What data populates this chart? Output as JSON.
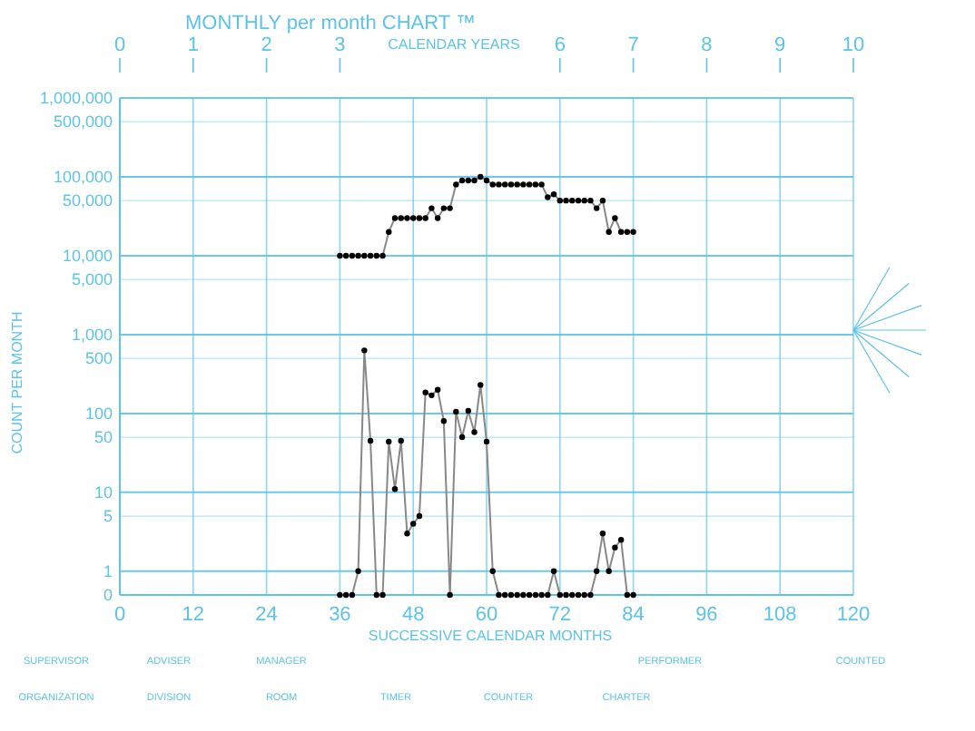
{
  "chart_data": {
    "type": "line",
    "title": "MONTHLY per month CHART ™",
    "xlabel": "SUCCESSIVE CALENDAR MONTHS",
    "ylabel": "COUNT PER MONTH",
    "x2label": "CALENDAR YEARS",
    "x": [
      36,
      37,
      38,
      39,
      40,
      41,
      42,
      43,
      44,
      45,
      46,
      47,
      48,
      49,
      50,
      51,
      52,
      53,
      54,
      55,
      56,
      57,
      58,
      59,
      60,
      61,
      62,
      63,
      64,
      65,
      66,
      67,
      68,
      69,
      70,
      71,
      72,
      73,
      74,
      75,
      76,
      77,
      78,
      79,
      80,
      81,
      82,
      83,
      84
    ],
    "series": [
      {
        "color": "#000000",
        "values": [
          10000,
          10000,
          10000,
          10000,
          10000,
          10000,
          10000,
          10000,
          20000,
          30000,
          30000,
          30000,
          30000,
          30000,
          30000,
          40000,
          30000,
          40000,
          40000,
          80000,
          90000,
          90000,
          90000,
          100000,
          90000,
          80000,
          80000,
          80000,
          80000,
          80000,
          80000,
          80000,
          80000,
          80000,
          55000,
          60000,
          50000,
          50000,
          50000,
          50000,
          50000,
          50000,
          40000,
          50000,
          20000,
          30000,
          20000,
          20000,
          20000
        ]
      },
      {
        "color": "#000000",
        "values": [
          0.5,
          0.5,
          0.5,
          1,
          630,
          45,
          0.5,
          0.5,
          44,
          11,
          45,
          3,
          4,
          5,
          185,
          170,
          200,
          80,
          0.5,
          105,
          50,
          108,
          58,
          230,
          44,
          1,
          0.5,
          0.5,
          0.5,
          0.5,
          0.5,
          0.5,
          0.5,
          0.5,
          0.5,
          1,
          0.5,
          0.5,
          0.5,
          0.5,
          0.5,
          0.5,
          1,
          3,
          1,
          2,
          2.5,
          0.5,
          0.5
        ]
      }
    ],
    "xlim": [
      0,
      120
    ],
    "xticks": [
      0,
      12,
      24,
      36,
      48,
      60,
      72,
      84,
      96,
      108,
      120
    ],
    "x2lim": [
      0,
      10
    ],
    "x2ticks": [
      0,
      1,
      2,
      3,
      6,
      7,
      8,
      9,
      10
    ],
    "ylim": [
      0.5,
      1000000
    ],
    "log": true,
    "yticks": [
      {
        "value": 0.5,
        "label": "0"
      },
      1,
      5,
      10,
      50,
      100,
      500,
      {
        "value": 1000,
        "label": "1,000"
      },
      {
        "value": 5000,
        "label": "5,000"
      },
      {
        "value": 10000,
        "label": "10,000"
      },
      {
        "value": 50000,
        "label": "50,000"
      },
      {
        "value": 100000,
        "label": "100,000"
      },
      {
        "value": 500000,
        "label": "500,000"
      },
      {
        "value": 1000000,
        "label": "1,000,000"
      }
    ],
    "grid": true,
    "marker": "circle",
    "line_style": "solid",
    "annotations": [
      "SUPERVISOR",
      "ADVISER",
      "MANAGER",
      "PERFORMER",
      "COUNTED",
      "ORGANIZATION",
      "DIVISION",
      "ROOM",
      "TIMER",
      "COUNTER",
      "CHARTER"
    ]
  }
}
